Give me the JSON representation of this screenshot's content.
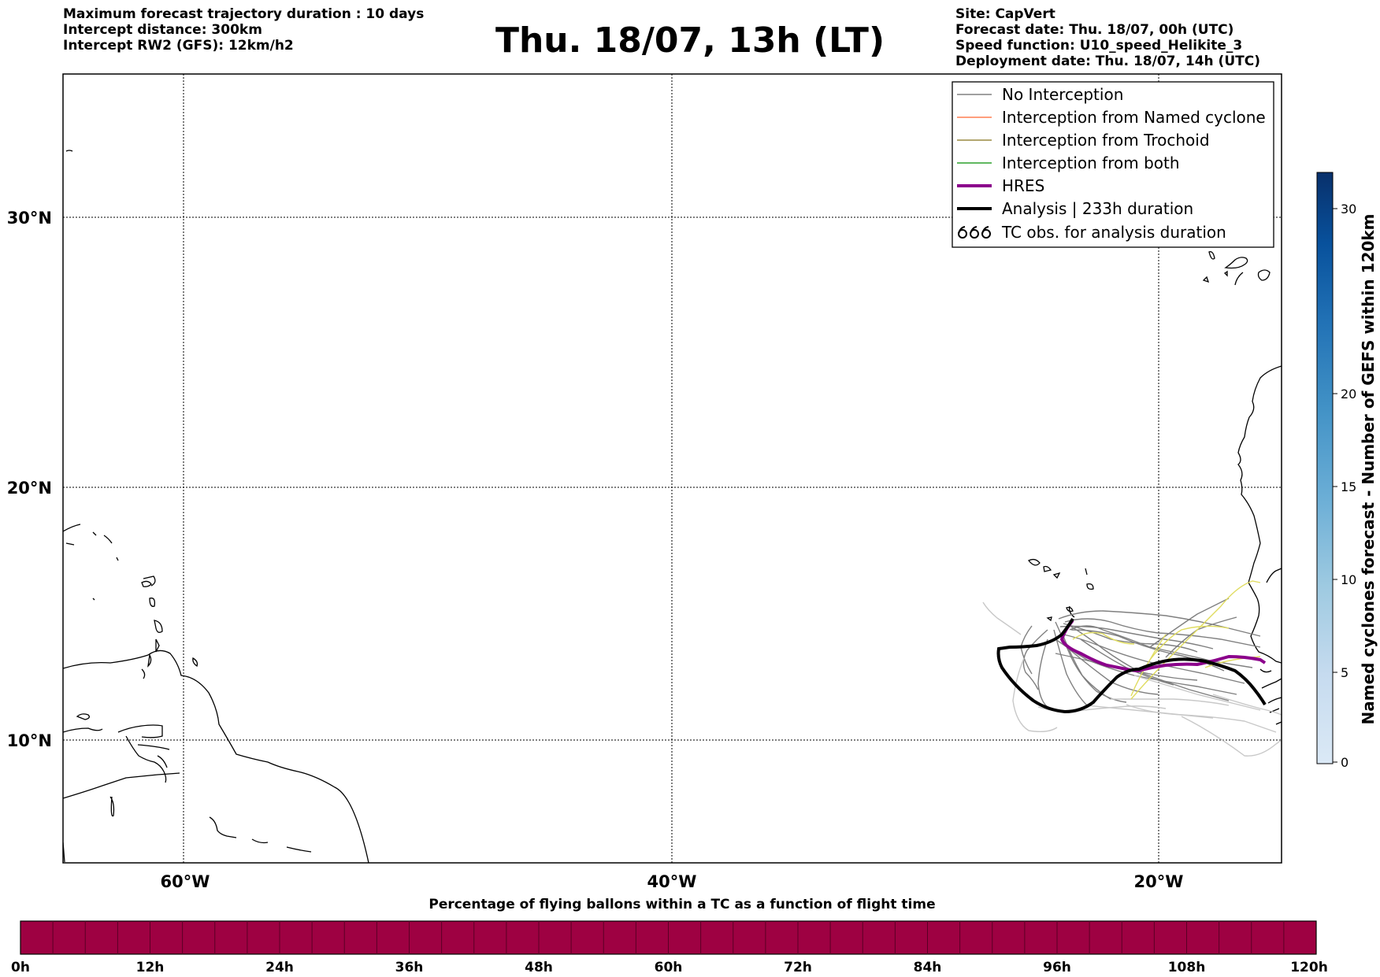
{
  "header": {
    "left_lines": [
      "Maximum forecast trajectory duration : 10 days",
      "Intercept distance: 300km",
      "Intercept RW2 (GFS):  12km/h2"
    ],
    "title": "Thu. 18/07, 13h (LT)",
    "right_lines": [
      "Site: CapVert",
      "Forecast date: Thu. 18/07, 00h (UTC)",
      "Speed function: U10_speed_Helikite_3",
      "Deployment date: Thu. 18/07, 14h (UTC)"
    ]
  },
  "map": {
    "lon_labels": [
      "60°W",
      "40°W",
      "20°W"
    ],
    "lat_labels": [
      "30°N",
      "20°N",
      "10°N"
    ],
    "gridlines": "dotted"
  },
  "legend": {
    "placement": "top-right",
    "items": [
      {
        "label": "No Interception",
        "color": "#808080",
        "style": "thin-line"
      },
      {
        "label": "Interception from Named cyclone",
        "color": "#ff7f50",
        "style": "thin-line"
      },
      {
        "label": "Interception from Trochoid",
        "color": "#9a8a40",
        "style": "thin-line"
      },
      {
        "label": "Interception from both",
        "color": "#2ca02c",
        "style": "thin-line"
      },
      {
        "label": "HRES",
        "color": "#8b008b",
        "style": "thick-line"
      },
      {
        "label": "Analysis | 233h duration",
        "color": "#000000",
        "style": "thick-line"
      },
      {
        "label": "TC obs. for analysis duration",
        "color": "#000000",
        "style": "cyclone-symbols",
        "icon": "cyclone-symbols-icon"
      }
    ]
  },
  "colorbar_right": {
    "label": "Named cyclones forecast - Number of GEFS within 120km",
    "ticks": [
      "0",
      "5",
      "10",
      "15",
      "20",
      "30"
    ],
    "colors": [
      "#dbe9f6",
      "#c6dbef",
      "#9ecae1",
      "#6baed6",
      "#4292c6",
      "#2171b5",
      "#08519c",
      "#08306b"
    ]
  },
  "colorbar_bottom": {
    "label": "Percentage of flying ballons within a TC as a function of flight time",
    "color": "#9e0142",
    "ticks": [
      "0h",
      "12h",
      "24h",
      "36h",
      "48h",
      "60h",
      "72h",
      "84h",
      "96h",
      "108h",
      "120h"
    ]
  }
}
